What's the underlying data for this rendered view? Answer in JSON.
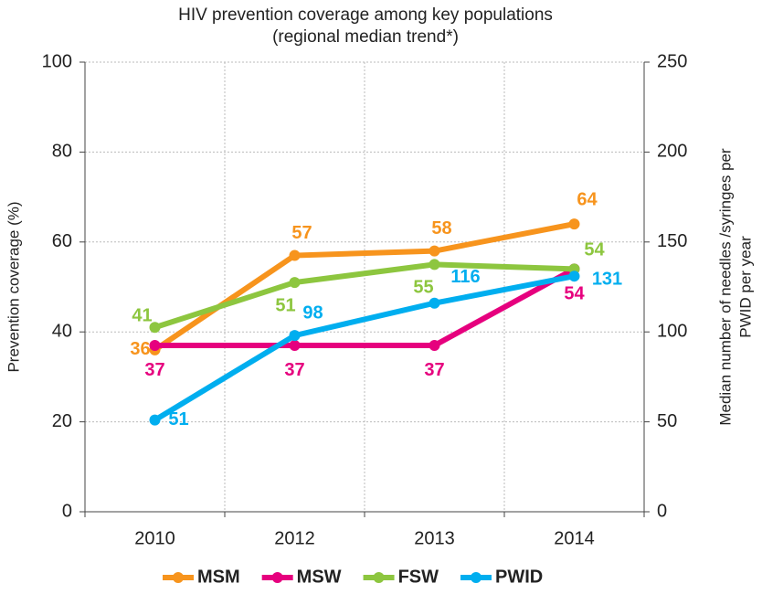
{
  "chart_data": {
    "type": "line",
    "title": [
      "HIV prevention coverage among key populations",
      "(regional median trend*)"
    ],
    "ylabel": "Prevention coverage (%)",
    "y2label": [
      "Median number of needles /syringes per",
      "PWID per year"
    ],
    "categories": [
      "2010",
      "2012",
      "2013",
      "2014"
    ],
    "series": [
      {
        "name": "MSM",
        "color": "#f7941d",
        "values": [
          36,
          57,
          58,
          64
        ]
      },
      {
        "name": "MSW",
        "color": "#e6007e",
        "values": [
          37,
          37,
          37,
          54
        ]
      },
      {
        "name": "FSW",
        "color": "#8dc63f",
        "values": [
          41,
          51,
          55,
          54
        ]
      },
      {
        "name": "PWID",
        "color": "#00aeef",
        "axis": "y2",
        "values": [
          51,
          98,
          116,
          131
        ]
      }
    ],
    "ylim": [
      0,
      100
    ],
    "yticks": [
      0,
      20,
      40,
      60,
      80,
      100
    ],
    "y2lim": [
      0,
      250
    ],
    "y2ticks": [
      0,
      50,
      100,
      150,
      200,
      250
    ],
    "grid": true,
    "legend": "bottom"
  }
}
